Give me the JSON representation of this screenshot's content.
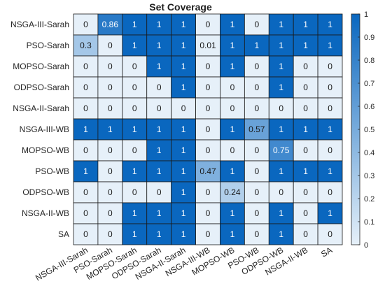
{
  "chart_data": {
    "type": "heatmap",
    "title": "Set Coverage",
    "rows": [
      "NSGA-III-Sarah",
      "PSO-Sarah",
      "MOPSO-Sarah",
      "ODPSO-Sarah",
      "NSGA-II-Sarah",
      "NSGA-III-WB",
      "MOPSO-WB",
      "PSO-WB",
      "ODPSO-WB",
      "NSGA-II-WB",
      "SA"
    ],
    "cols": [
      "NSGA-III-Sarah",
      "PSO-Sarah",
      "MOPSO-Sarah",
      "ODPSO-Sarah",
      "NSGA-II-Sarah",
      "NSGA-III-WB",
      "MOPSO-WB",
      "PSO-WB",
      "ODPSO-WB",
      "NSGA-II-WB",
      "SA"
    ],
    "values": [
      [
        0,
        0.86,
        1,
        1,
        1,
        0,
        1,
        0,
        1,
        1,
        1
      ],
      [
        0.3,
        0,
        1,
        1,
        1,
        0.01,
        1,
        1,
        1,
        1,
        1
      ],
      [
        0,
        0,
        0,
        1,
        1,
        0,
        1,
        0,
        1,
        0,
        0
      ],
      [
        0,
        0,
        0,
        0,
        1,
        0,
        0,
        0,
        1,
        0,
        0
      ],
      [
        0,
        0,
        0,
        0,
        0,
        0,
        0,
        0,
        0,
        0,
        0
      ],
      [
        1,
        1,
        1,
        1,
        1,
        0,
        1,
        0.57,
        1,
        1,
        1
      ],
      [
        0,
        0,
        0,
        1,
        1,
        0,
        0,
        0,
        0.75,
        0,
        0
      ],
      [
        1,
        0,
        1,
        1,
        1,
        0.47,
        1,
        0,
        1,
        1,
        1
      ],
      [
        0,
        0,
        0,
        0,
        1,
        0,
        0.24,
        0,
        0,
        0,
        0
      ],
      [
        0,
        0,
        1,
        1,
        1,
        0,
        1,
        0,
        1,
        0,
        1
      ],
      [
        0,
        0,
        1,
        1,
        1,
        0,
        1,
        0,
        1,
        0,
        0
      ]
    ],
    "colorbar": {
      "range": [
        0,
        1
      ],
      "ticks": [
        "0",
        "0.1",
        "0.2",
        "0.3",
        "0.4",
        "0.5",
        "0.6",
        "0.7",
        "0.8",
        "0.9",
        "1"
      ]
    },
    "colors": {
      "low": "#e6f0f9",
      "high": "#0a67bf",
      "grid": "#1a1a1a",
      "text_dark": "#1a1a1a",
      "text_light": "#ffffff"
    }
  }
}
